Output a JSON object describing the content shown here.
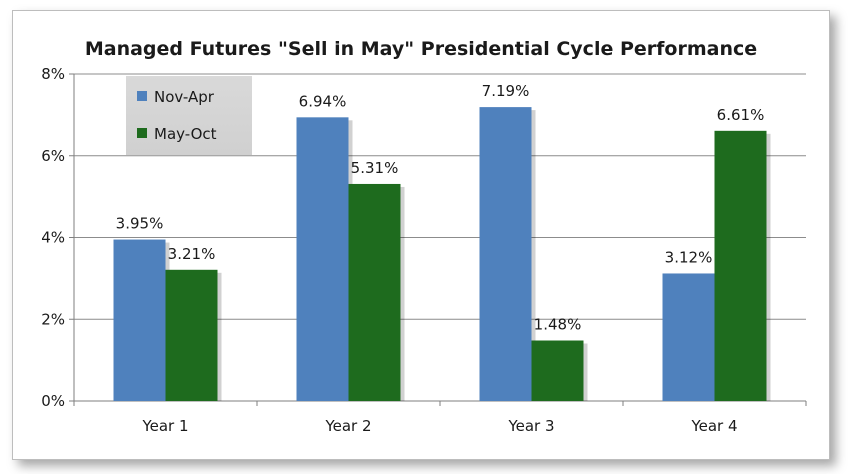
{
  "chart_data": {
    "type": "bar",
    "title": "Managed Futures \"Sell in May\" Presidential Cycle Performance",
    "categories": [
      "Year 1",
      "Year 2",
      "Year 3",
      "Year 4"
    ],
    "series": [
      {
        "name": "Nov-Apr",
        "values": [
          3.95,
          6.94,
          7.19,
          3.12
        ],
        "labels": [
          "3.95%",
          "6.94%",
          "7.19%",
          "3.12%"
        ],
        "color": "#4f81bd"
      },
      {
        "name": "May-Oct",
        "values": [
          3.21,
          5.31,
          1.48,
          6.61
        ],
        "labels": [
          "3.21%",
          "5.31%",
          "1.48%",
          "6.61%"
        ],
        "color": "#1e6b1e"
      }
    ],
    "ylim": [
      0,
      8
    ],
    "yticks": [
      "0%",
      "2%",
      "4%",
      "6%",
      "8%"
    ],
    "grid": true,
    "legend": "top-left",
    "xlabel": "",
    "ylabel": ""
  }
}
